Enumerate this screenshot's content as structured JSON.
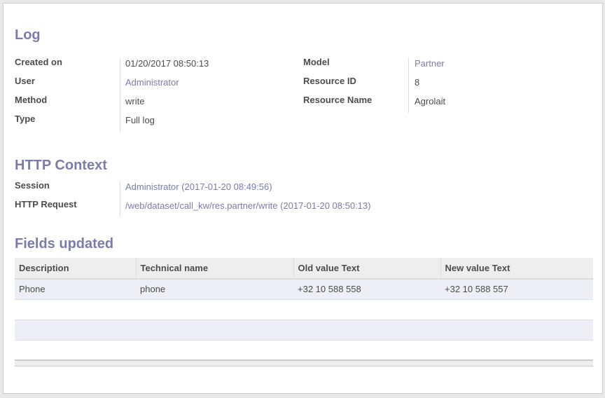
{
  "log": {
    "title": "Log",
    "left": [
      {
        "label": "Created on",
        "value": "01/20/2017 08:50:13",
        "link": false
      },
      {
        "label": "User",
        "value": "Administrator",
        "link": true
      },
      {
        "label": "Method",
        "value": "write",
        "link": false
      },
      {
        "label": "Type",
        "value": "Full log",
        "link": false
      }
    ],
    "right": [
      {
        "label": "Model",
        "value": "Partner",
        "link": true
      },
      {
        "label": "Resource ID",
        "value": "8",
        "link": false
      },
      {
        "label": "Resource Name",
        "value": "Agrolait",
        "link": false
      }
    ]
  },
  "http": {
    "title": "HTTP Context",
    "rows": [
      {
        "label": "Session",
        "value": "Administrator (2017-01-20 08:49:56)"
      },
      {
        "label": "HTTP Request",
        "value": "/web/dataset/call_kw/res.partner/write (2017-01-20 08:50:13)"
      }
    ]
  },
  "fields": {
    "title": "Fields updated",
    "columns": [
      "Description",
      "Technical name",
      "Old value Text",
      "New value Text"
    ],
    "rows": [
      [
        "Phone",
        "phone",
        "+32 10 588 558",
        "+32 10 588 557"
      ]
    ]
  },
  "colors": {
    "accent": "#7c7bad"
  }
}
